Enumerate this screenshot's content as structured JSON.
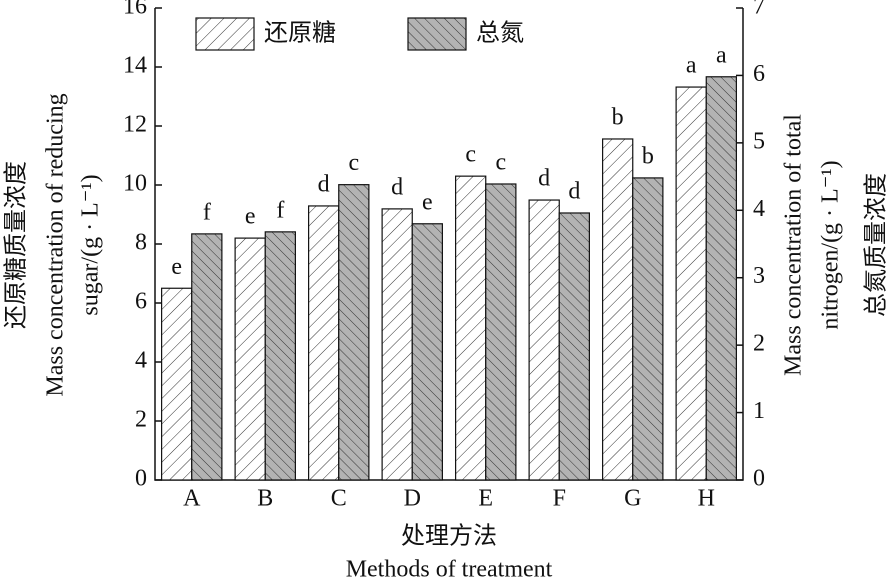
{
  "chart_data": {
    "type": "bar",
    "categories": [
      "A",
      "B",
      "C",
      "D",
      "E",
      "F",
      "G",
      "H"
    ],
    "series": [
      {
        "name": "还原糖",
        "color": "#ffffff",
        "values": [
          6.5,
          8.2,
          9.29,
          9.19,
          10.3,
          9.49,
          11.56,
          13.32
        ],
        "letters": [
          "e",
          "e",
          "d",
          "d",
          "c",
          "d",
          "b",
          "a"
        ]
      },
      {
        "name": "总氮",
        "color": "#b3b3b3",
        "axis": "y2",
        "values": [
          3.65,
          3.68,
          4.38,
          3.8,
          4.39,
          3.96,
          4.48,
          5.98
        ],
        "letters": [
          "f",
          "f",
          "c",
          "e",
          "c",
          "d",
          "b",
          "a"
        ]
      }
    ],
    "ylim": [
      0,
      16
    ],
    "yticks": [
      0,
      2,
      4,
      6,
      8,
      10,
      12,
      14,
      16
    ],
    "y2lim": [
      0,
      7
    ],
    "y2ticks": [
      0,
      1,
      2,
      3,
      4,
      5,
      6,
      7
    ],
    "ylabel": [
      "还原糖质量浓度",
      "Mass concentration of reducing",
      "sugar/(g · L⁻¹)"
    ],
    "y2label": [
      "Mass concentration of total",
      "nitrogen/(g · L⁻¹)",
      "总氮质量浓度"
    ],
    "xlabel": [
      "处理方法",
      "Methods of treatment"
    ]
  }
}
